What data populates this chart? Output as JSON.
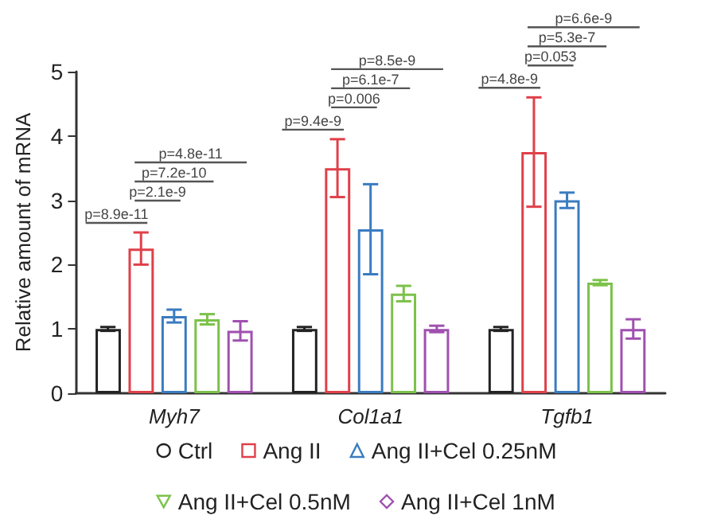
{
  "chart_data": {
    "type": "bar",
    "ylabel": "Relative amount of mRNA",
    "categories": [
      "Myh7",
      "Col1a1",
      "Tgfb1"
    ],
    "series": [
      {
        "name": "Ctrl",
        "color": "#222222",
        "values": [
          1.0,
          1.0,
          1.0
        ],
        "errors": [
          0.03,
          0.03,
          0.03
        ]
      },
      {
        "name": "Ang II",
        "color": "#e0404a",
        "values": [
          2.25,
          3.5,
          3.75
        ],
        "errors": [
          0.25,
          0.45,
          0.85
        ]
      },
      {
        "name": "Ang II+Cel 0.25nM",
        "color": "#3a7cc0",
        "values": [
          1.2,
          2.55,
          3.0
        ],
        "errors": [
          0.1,
          0.7,
          0.12
        ]
      },
      {
        "name": "Ang II+Cel 0.5nM",
        "color": "#7cc24a",
        "values": [
          1.15,
          1.55,
          1.72
        ],
        "errors": [
          0.08,
          0.12,
          0.04
        ]
      },
      {
        "name": "Ang II+Cel 1nM",
        "color": "#a050b0",
        "values": [
          0.97,
          1.0,
          1.0
        ],
        "errors": [
          0.15,
          0.05,
          0.15
        ]
      }
    ],
    "ylim": [
      0,
      5
    ],
    "yticks": [
      0,
      1,
      2,
      3,
      4,
      5
    ],
    "grid": false,
    "legend": "bottom",
    "annotations": [
      "p=8.9e-11",
      "p=2.1e-9",
      "p=7.2e-10",
      "p=4.8e-11",
      "p=9.4e-9",
      "p=0.006",
      "p=6.1e-7",
      "p=8.5e-9",
      "p=4.8e-9",
      "p=0.053",
      "p=5.3e-7",
      "p=6.6e-9"
    ]
  }
}
